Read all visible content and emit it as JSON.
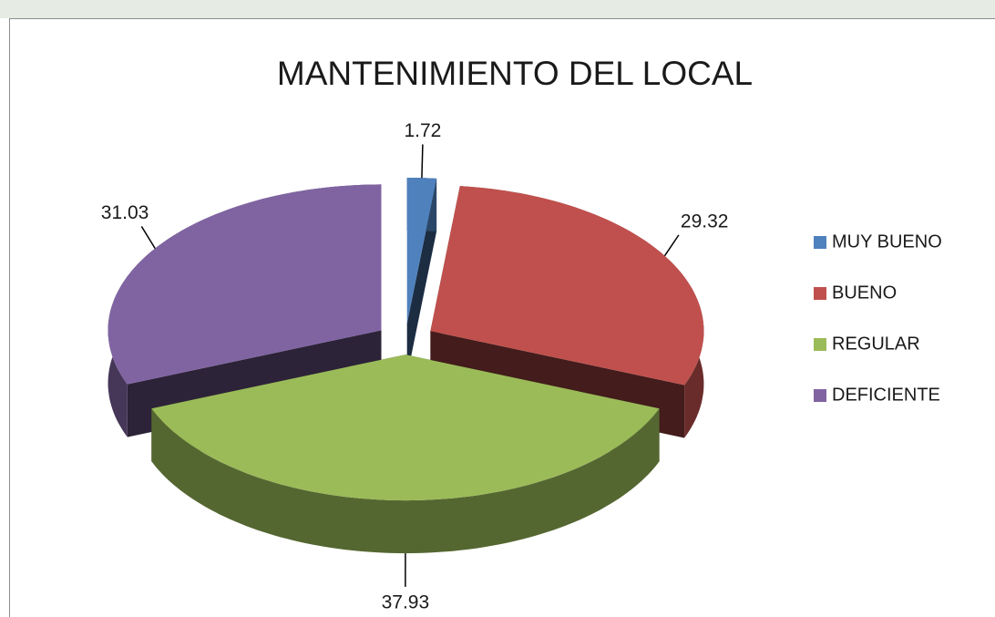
{
  "chart_data": {
    "type": "pie3d",
    "title": "MANTENIMIENTO DEL LOCAL",
    "categories": [
      "MUY BUENO",
      "BUENO",
      "REGULAR",
      "DEFICIENTE"
    ],
    "values": [
      1.72,
      29.32,
      37.93,
      31.03
    ],
    "colors": [
      "#4f81bd",
      "#c0504d",
      "#9bbb59",
      "#8064a2"
    ],
    "legend": "right"
  }
}
